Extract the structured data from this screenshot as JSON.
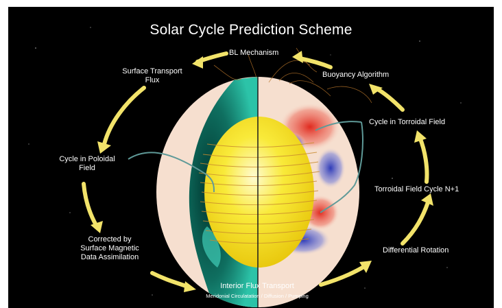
{
  "title": "Solar Cycle Prediction Scheme",
  "labels": {
    "bl_mechanism": "BL Mechanism",
    "surface_transport": [
      "Surface Transport",
      "Flux"
    ],
    "buoyancy_algorithm": "Buoyancy Algorithm",
    "cycle_torroidal": "Cycle in Torroidal Field",
    "cycle_poloidal": [
      "Cycle in Poloidal",
      "Field"
    ],
    "torroidal_cycle_n1": "Torroidal Field Cycle N+1",
    "corrected_by": [
      "Corrected by",
      "Surface Magnetic",
      "Data Assimilation"
    ],
    "differential_rotation": "Differential Rotation",
    "interior_flux": "Interior Flux Transport",
    "interior_flux_sub": "Meridonial Circulatation / Diffusion / Pumping"
  },
  "colors": {
    "background": "#000000",
    "arrow": "#f2e36a",
    "surface": "#f6dfcf",
    "core": "#f6e31a",
    "field_lines": "#c98a2e",
    "teal": "#1b9c88",
    "connector": "#5f9a98",
    "positive": "#e23a2b",
    "negative": "#3d47c4"
  },
  "icons": [
    "sun-cutaway-illustration",
    "cycle-arrow-icon"
  ]
}
